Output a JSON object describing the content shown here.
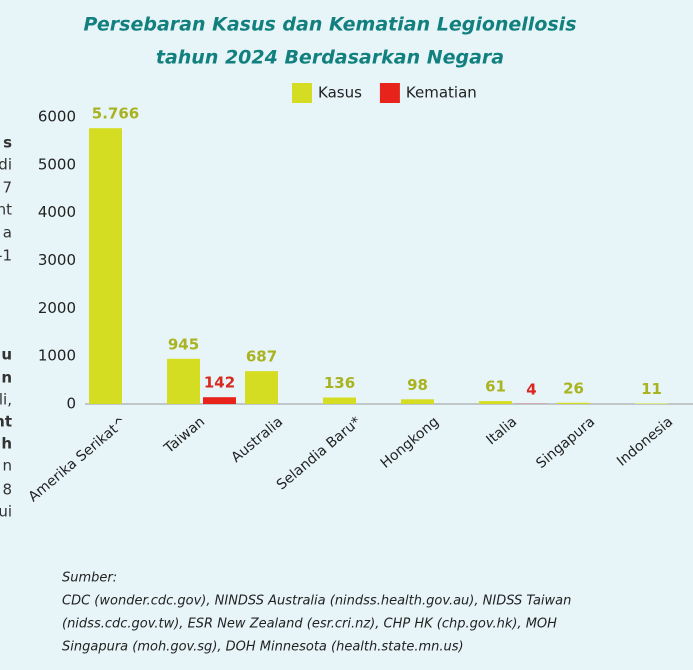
{
  "chart_data": {
    "type": "bar",
    "title": "Persebaran Kasus dan Kematian Legionellosis",
    "subtitle": "tahun 2024  Berdasarkan Negara",
    "categories": [
      "Amerika Serikat^",
      "Taiwan",
      "Australia",
      "Selandia Baru*",
      "Hongkong",
      "Italia",
      "Singapura",
      "Indonesia"
    ],
    "series": [
      {
        "name": "Kasus",
        "color": "#d5dd22",
        "label_color": "#a9b31f",
        "values": [
          5766,
          945,
          687,
          136,
          98,
          61,
          26,
          11
        ],
        "value_labels": [
          "5.766",
          "945",
          "687",
          "136",
          "98",
          "61",
          "26",
          "11"
        ]
      },
      {
        "name": "Kematian",
        "color": "#e8231c",
        "label_color": "#d8281f",
        "values": [
          null,
          142,
          null,
          null,
          null,
          4,
          null,
          null
        ],
        "value_labels": [
          null,
          "142",
          null,
          null,
          null,
          "4",
          null,
          null
        ]
      }
    ],
    "ylim": [
      0,
      6000
    ],
    "yticks": [
      0,
      1000,
      2000,
      3000,
      4000,
      5000,
      6000
    ],
    "grid": false,
    "legend": "top",
    "source_title": "Sumber:",
    "source_lines": [
      "CDC (wonder.cdc.gov), NINDSS Australia (nindss.health.gov.au), NIDSS Taiwan",
      "(nidss.cdc.gov.tw),   ESR New Zealand (esr.cri.nz), CHP HK (chp.gov.hk), MOH",
      "Singapura (moh.gov.sg),  DOH Minnesota (health.state.mn.us)"
    ],
    "side_fragments": [
      "s",
      "di",
      "7",
      "nt",
      "a",
      "-1",
      "u",
      "n",
      "li,",
      "nt",
      "h",
      "n",
      "8",
      "ui"
    ]
  }
}
